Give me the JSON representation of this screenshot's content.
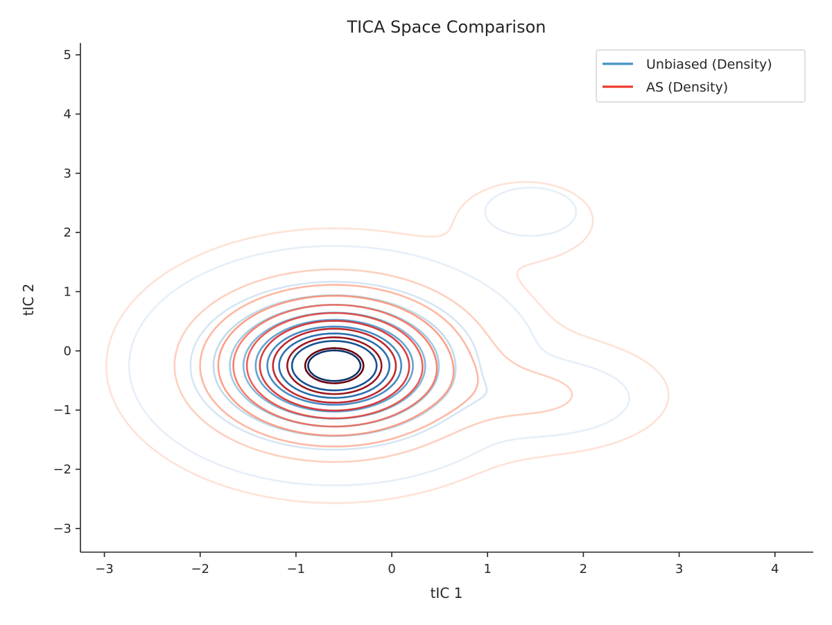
{
  "chart_data": {
    "type": "contour",
    "title": "TICA Space Comparison",
    "xlabel": "tIC 1",
    "ylabel": "tIC 2",
    "xlim": [
      -3.25,
      4.4
    ],
    "ylim": [
      -3.4,
      5.2
    ],
    "xticks": [
      -3,
      -2,
      -1,
      0,
      1,
      2,
      3,
      4
    ],
    "yticks": [
      -3,
      -2,
      -1,
      0,
      1,
      2,
      3,
      4,
      5
    ],
    "xtick_labels": [
      "−3",
      "−2",
      "−1",
      "0",
      "1",
      "2",
      "3",
      "4"
    ],
    "ytick_labels": [
      "−3",
      "−2",
      "−1",
      "0",
      "1",
      "2",
      "3",
      "4",
      "5"
    ],
    "grid": false,
    "legend_position": "top-right",
    "series": [
      {
        "name": "Unbiased (Density)",
        "legend_color": "#4292c6",
        "colormap": "Blues",
        "levels": 10,
        "modes": [
          {
            "cx": -0.6,
            "cy": -0.25,
            "sx": 0.72,
            "sy": 0.68,
            "weight": 1.0
          },
          {
            "cx": 1.55,
            "cy": -0.8,
            "sx": 0.45,
            "sy": 0.3,
            "weight": 0.1
          },
          {
            "cx": 1.45,
            "cy": 2.35,
            "sx": 0.35,
            "sy": 0.3,
            "weight": 0.03
          }
        ]
      },
      {
        "name": "AS (Density)",
        "legend_color": "#ef3b2c",
        "colormap": "Reds",
        "levels": 10,
        "modes": [
          {
            "cx": -0.6,
            "cy": -0.25,
            "sx": 0.8,
            "sy": 0.78,
            "weight": 1.0
          },
          {
            "cx": 1.6,
            "cy": -0.75,
            "sx": 0.6,
            "sy": 0.45,
            "weight": 0.12
          },
          {
            "cx": 1.4,
            "cy": 2.2,
            "sx": 0.45,
            "sy": 0.42,
            "weight": 0.04
          }
        ]
      }
    ]
  }
}
